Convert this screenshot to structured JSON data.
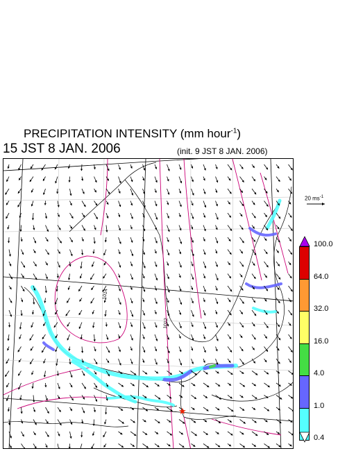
{
  "header": {
    "title_text": "PRECIPITATION INTENSITY (mm hour",
    "title_exp": "-1",
    "title_close": ")",
    "datetime": "15 JST 8 JAN. 2006",
    "init": "(init. 9 JST 8 JAN. 2006)"
  },
  "reference_wind": {
    "value": "20 ms",
    "exp": "-1"
  },
  "colorbar": {
    "levels": [
      "100.0",
      "64.0",
      "32.0",
      "16.0",
      "4.0",
      "1.0",
      "0.4"
    ],
    "colors": [
      "#dd0000",
      "#ff9933",
      "#ffff66",
      "#44dd44",
      "#6666ff",
      "#55ffff"
    ],
    "top_color": "#aa00ee"
  },
  "contour_labels": [
    "1014",
    "1012"
  ],
  "marker": {
    "color": "#ee2200",
    "symbol": "★"
  }
}
